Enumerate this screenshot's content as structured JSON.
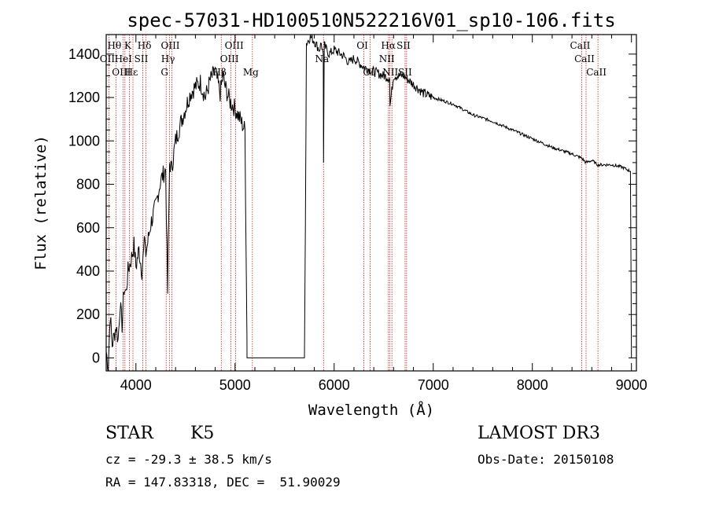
{
  "chart_data": {
    "type": "line",
    "title": "spec-57031-HD100510N522216V01_sp10-106.fits",
    "xlabel": "Wavelength (Å)",
    "ylabel": "Flux (relative)",
    "xlim": [
      3700,
      9050
    ],
    "ylim": [
      -60,
      1490
    ],
    "xticks": [
      4000,
      5000,
      6000,
      7000,
      8000,
      9000
    ],
    "yticks": [
      0,
      200,
      400,
      600,
      800,
      1000,
      1200,
      1400
    ],
    "series": [
      {
        "name": "flux",
        "x": [
          3700,
          3720,
          3740,
          3760,
          3780,
          3800,
          3820,
          3840,
          3860,
          3880,
          3900,
          3920,
          3950,
          3980,
          4000,
          4030,
          4060,
          4090,
          4100,
          4150,
          4200,
          4250,
          4300,
          4320,
          4340,
          4360,
          4400,
          4450,
          4500,
          4550,
          4600,
          4650,
          4700,
          4750,
          4800,
          4850,
          4880,
          4900,
          4950,
          5000,
          5050,
          5100,
          5120,
          5121,
          5130,
          5700,
          5710,
          5720,
          5760,
          5800,
          5850,
          5870,
          5890,
          5893,
          5900,
          5950,
          6000,
          6100,
          6150,
          6200,
          6300,
          6400,
          6500,
          6560,
          6563,
          6600,
          6700,
          6800,
          6900,
          7000,
          7200,
          7400,
          7600,
          7800,
          8000,
          8200,
          8400,
          8500,
          8540,
          8600,
          8660,
          8800,
          8900,
          8990,
          9000
        ],
        "values": [
          30,
          -40,
          200,
          60,
          100,
          150,
          80,
          250,
          150,
          320,
          300,
          400,
          450,
          520,
          420,
          500,
          400,
          550,
          480,
          620,
          700,
          820,
          870,
          300,
          900,
          870,
          1000,
          1080,
          1150,
          1220,
          1250,
          1270,
          1200,
          1280,
          1320,
          1220,
          1300,
          1250,
          1180,
          1150,
          1100,
          1050,
          100,
          0,
          0,
          0,
          600,
          1450,
          1480,
          1460,
          1420,
          1450,
          1400,
          900,
          1440,
          1400,
          1420,
          1390,
          1360,
          1380,
          1340,
          1320,
          1300,
          1290,
          1160,
          1300,
          1300,
          1260,
          1220,
          1200,
          1170,
          1120,
          1090,
          1050,
          1010,
          970,
          940,
          920,
          900,
          910,
          890,
          890,
          880,
          860,
          0
        ]
      }
    ],
    "spectral_lines": [
      {
        "label": "OII",
        "wavelength": 3727,
        "row": 1
      },
      {
        "label": "Hθ",
        "wavelength": 3798,
        "row": 0
      },
      {
        "label": "OIII",
        "wavelength": 3869,
        "row": 2
      },
      {
        "label": "HeI",
        "wavelength": 3889,
        "row": 1
      },
      {
        "label": "K",
        "wavelength": 3934,
        "row": 0
      },
      {
        "label": "Hε",
        "wavelength": 3970,
        "row": 2
      },
      {
        "label": "SII",
        "wavelength": 4069,
        "row": 1
      },
      {
        "label": "Hδ",
        "wavelength": 4102,
        "row": 0
      },
      {
        "label": "G",
        "wavelength": 4305,
        "row": 2
      },
      {
        "label": "Hγ",
        "wavelength": 4340,
        "row": 1
      },
      {
        "label": "OIII",
        "wavelength": 4363,
        "row": 0
      },
      {
        "label": "Hβ",
        "wavelength": 4861,
        "row": 2
      },
      {
        "label": "OIII",
        "wavelength": 4959,
        "row": 1
      },
      {
        "label": "OIII",
        "wavelength": 5007,
        "row": 0
      },
      {
        "label": "Mg",
        "wavelength": 5175,
        "row": 2
      },
      {
        "label": "Na",
        "wavelength": 5893,
        "row": 1
      },
      {
        "label": "OI",
        "wavelength": 6300,
        "row": 0
      },
      {
        "label": "OI",
        "wavelength": 6364,
        "row": 2
      },
      {
        "label": "NII",
        "wavelength": 6548,
        "row": 1
      },
      {
        "label": "Hα",
        "wavelength": 6563,
        "row": 0
      },
      {
        "label": "NII",
        "wavelength": 6583,
        "row": 2
      },
      {
        "label": "SII",
        "wavelength": 6716,
        "row": 0
      },
      {
        "label": "SII",
        "wavelength": 6731,
        "row": 2
      },
      {
        "label": "CaII",
        "wavelength": 8498,
        "row": 0
      },
      {
        "label": "CaII",
        "wavelength": 8542,
        "row": 1
      },
      {
        "label": "CaII",
        "wavelength": 8662,
        "row": 2
      }
    ],
    "line_color": "#000000",
    "marker_color": "#cc2222"
  },
  "info": {
    "object_type": "STAR",
    "subclass": "K5",
    "survey": "LAMOST DR3",
    "cz": "cz = -29.3 ± 38.5 km/s",
    "obs_date": "Obs-Date: 20150108",
    "coords": "RA = 147.83318, DEC =  51.90029"
  }
}
